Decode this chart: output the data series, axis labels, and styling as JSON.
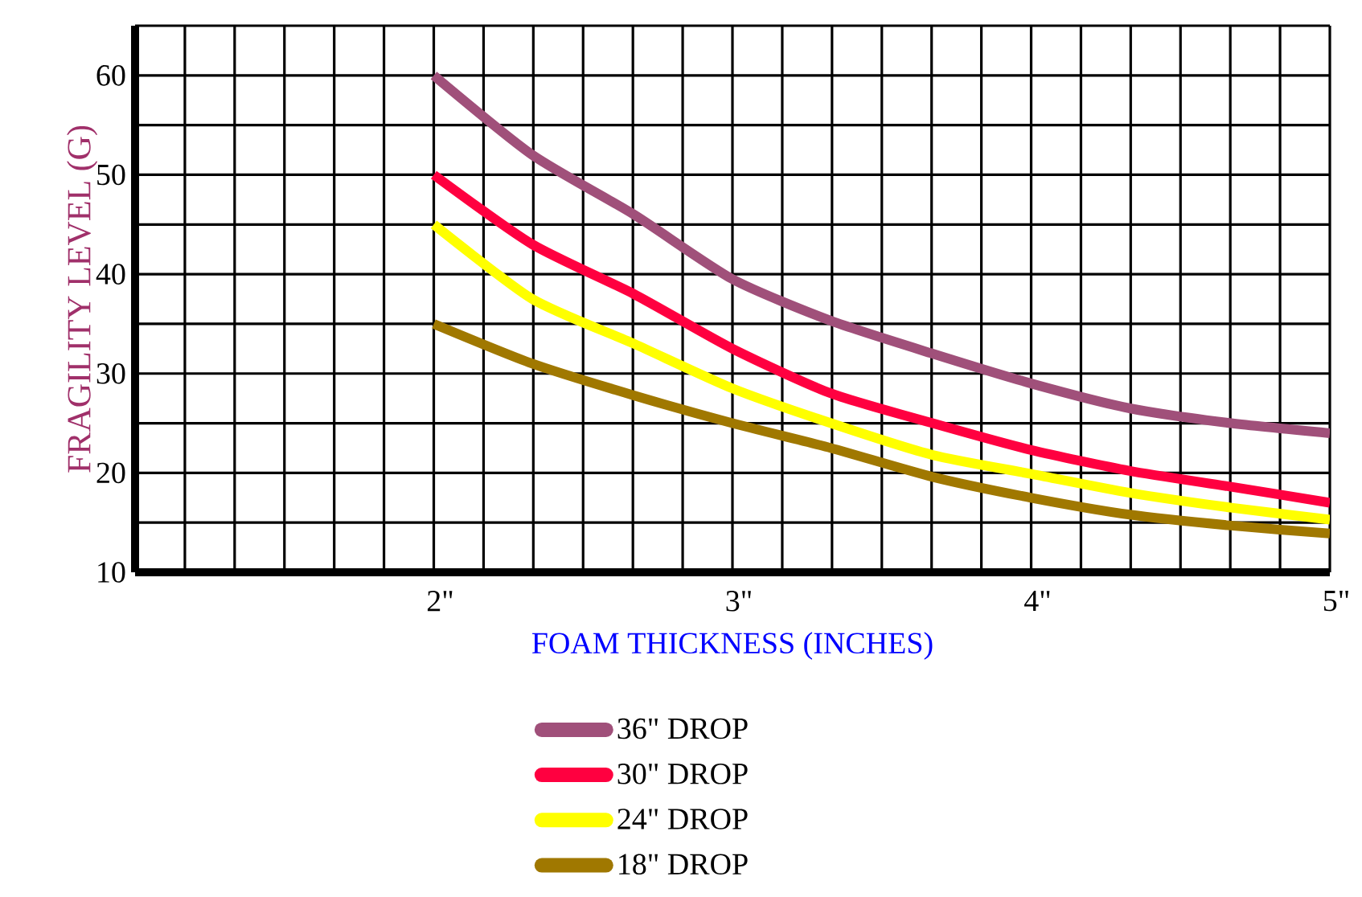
{
  "chart_data": {
    "type": "line",
    "xlabel": "FOAM THICKNESS (INCHES)",
    "ylabel": "FRAGILITY LEVEL (G)",
    "x": [
      2,
      2.33,
      2.67,
      3,
      3.33,
      3.67,
      4,
      4.33,
      4.67,
      5
    ],
    "series": [
      {
        "name": "36\" DROP",
        "color": "#a0507a",
        "values": [
          60,
          52,
          46,
          39.5,
          35.3,
          32,
          29,
          26.5,
          25,
          24
        ]
      },
      {
        "name": "30\" DROP",
        "color": "#ff0040",
        "values": [
          50,
          43,
          38,
          32.5,
          28,
          25,
          22.3,
          20.2,
          18.6,
          17
        ]
      },
      {
        "name": "24\" DROP",
        "color": "#ffff00",
        "values": [
          45,
          37.5,
          33,
          28.5,
          25,
          21.8,
          19.9,
          18,
          16.5,
          15.3
        ]
      },
      {
        "name": "18\" DROP",
        "color": "#a07800",
        "values": [
          35,
          31,
          27.8,
          25,
          22.5,
          19.6,
          17.5,
          15.8,
          14.7,
          13.9
        ]
      }
    ],
    "xlim": [
      1,
      5
    ],
    "xticks": [
      {
        "value": 1.1667,
        "label": null
      },
      {
        "value": 1.3333,
        "label": null
      },
      {
        "value": 1.5,
        "label": null
      },
      {
        "value": 1.6667,
        "label": null
      },
      {
        "value": 1.8333,
        "label": null
      },
      {
        "value": 2,
        "label": "2\""
      },
      {
        "value": 2.1667,
        "label": null
      },
      {
        "value": 2.3333,
        "label": null
      },
      {
        "value": 2.5,
        "label": null
      },
      {
        "value": 2.6667,
        "label": null
      },
      {
        "value": 2.8333,
        "label": null
      },
      {
        "value": 3,
        "label": "3\""
      },
      {
        "value": 3.1667,
        "label": null
      },
      {
        "value": 3.3333,
        "label": null
      },
      {
        "value": 3.5,
        "label": null
      },
      {
        "value": 3.6667,
        "label": null
      },
      {
        "value": 3.8333,
        "label": null
      },
      {
        "value": 4,
        "label": "4\""
      },
      {
        "value": 4.1667,
        "label": null
      },
      {
        "value": 4.3333,
        "label": null
      },
      {
        "value": 4.5,
        "label": null
      },
      {
        "value": 4.6667,
        "label": null
      },
      {
        "value": 4.8333,
        "label": null
      },
      {
        "value": 5,
        "label": "5\""
      }
    ],
    "ylim": [
      10,
      65
    ],
    "yticks": [
      10,
      {
        "value": 15,
        "label": null
      },
      20,
      {
        "value": 25,
        "label": null
      },
      30,
      {
        "value": 35,
        "label": null
      },
      40,
      {
        "value": 45,
        "label": null
      },
      50,
      {
        "value": 55,
        "label": null
      },
      60,
      {
        "value": 65,
        "label": null
      }
    ],
    "grid": true,
    "legend": "bottom",
    "line_style": "solid"
  }
}
